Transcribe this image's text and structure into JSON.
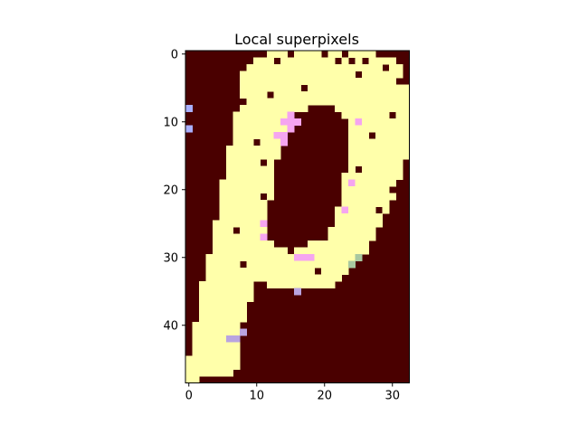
{
  "chart_data": {
    "type": "heatmap",
    "title": "Local superpixels",
    "xlabel": "",
    "ylabel": "",
    "xticks": [
      0,
      10,
      20,
      30
    ],
    "yticks": [
      0,
      10,
      20,
      30,
      40
    ],
    "xlim": [
      -0.5,
      32.5
    ],
    "ylim": [
      48.5,
      -0.5
    ],
    "grid": false,
    "colors": {
      "background": "#4a0000",
      "segment": "#ffffaa",
      "edge_pink": "#f5a5f0",
      "edge_lavender": "#b9a4e0",
      "edge_blue": "#aab0ff",
      "edge_green": "#a8c8a0"
    },
    "segment_rows": [
      {
        "row": 0,
        "runs": [
          [
            12,
            27
          ]
        ]
      },
      {
        "row": 1,
        "runs": [
          [
            10,
            30
          ]
        ]
      },
      {
        "row": 2,
        "runs": [
          [
            9,
            31
          ]
        ]
      },
      {
        "row": 3,
        "runs": [
          [
            8,
            31
          ]
        ]
      },
      {
        "row": 4,
        "runs": [
          [
            8,
            31
          ]
        ]
      },
      {
        "row": 5,
        "runs": [
          [
            8,
            32
          ]
        ]
      },
      {
        "row": 6,
        "runs": [
          [
            8,
            32
          ]
        ]
      },
      {
        "row": 7,
        "runs": [
          [
            8,
            32
          ]
        ]
      },
      {
        "row": 8,
        "runs": [
          [
            8,
            17
          ],
          [
            22,
            32
          ]
        ]
      },
      {
        "row": 9,
        "runs": [
          [
            7,
            15
          ],
          [
            23,
            32
          ]
        ]
      },
      {
        "row": 10,
        "runs": [
          [
            7,
            14
          ],
          [
            24,
            32
          ]
        ]
      },
      {
        "row": 11,
        "runs": [
          [
            7,
            14
          ],
          [
            24,
            32
          ]
        ]
      },
      {
        "row": 12,
        "runs": [
          [
            7,
            13
          ],
          [
            24,
            32
          ]
        ]
      },
      {
        "row": 13,
        "runs": [
          [
            7,
            13
          ],
          [
            24,
            32
          ]
        ]
      },
      {
        "row": 14,
        "runs": [
          [
            6,
            13
          ],
          [
            24,
            32
          ]
        ]
      },
      {
        "row": 15,
        "runs": [
          [
            6,
            13
          ],
          [
            24,
            32
          ]
        ]
      },
      {
        "row": 16,
        "runs": [
          [
            6,
            12
          ],
          [
            24,
            31
          ]
        ]
      },
      {
        "row": 17,
        "runs": [
          [
            6,
            12
          ],
          [
            24,
            31
          ]
        ]
      },
      {
        "row": 18,
        "runs": [
          [
            6,
            12
          ],
          [
            23,
            31
          ]
        ]
      },
      {
        "row": 19,
        "runs": [
          [
            5,
            12
          ],
          [
            23,
            30
          ]
        ]
      },
      {
        "row": 20,
        "runs": [
          [
            5,
            12
          ],
          [
            23,
            30
          ]
        ]
      },
      {
        "row": 21,
        "runs": [
          [
            5,
            12
          ],
          [
            23,
            30
          ]
        ]
      },
      {
        "row": 22,
        "runs": [
          [
            5,
            11
          ],
          [
            23,
            29
          ]
        ]
      },
      {
        "row": 23,
        "runs": [
          [
            5,
            11
          ],
          [
            22,
            29
          ]
        ]
      },
      {
        "row": 24,
        "runs": [
          [
            5,
            11
          ],
          [
            22,
            28
          ]
        ]
      },
      {
        "row": 25,
        "runs": [
          [
            4,
            11
          ],
          [
            22,
            28
          ]
        ]
      },
      {
        "row": 26,
        "runs": [
          [
            4,
            11
          ],
          [
            21,
            27
          ]
        ]
      },
      {
        "row": 27,
        "runs": [
          [
            4,
            11
          ],
          [
            20,
            27
          ]
        ]
      },
      {
        "row": 28,
        "runs": [
          [
            4,
            12
          ],
          [
            18,
            26
          ]
        ]
      },
      {
        "row": 29,
        "runs": [
          [
            4,
            14
          ],
          [
            16,
            26
          ]
        ]
      },
      {
        "row": 30,
        "runs": [
          [
            3,
            25
          ]
        ]
      },
      {
        "row": 31,
        "runs": [
          [
            3,
            24
          ]
        ]
      },
      {
        "row": 32,
        "runs": [
          [
            3,
            23
          ]
        ]
      },
      {
        "row": 33,
        "runs": [
          [
            3,
            22
          ]
        ]
      },
      {
        "row": 34,
        "runs": [
          [
            2,
            9
          ],
          [
            12,
            21
          ]
        ]
      },
      {
        "row": 35,
        "runs": [
          [
            2,
            9
          ]
        ]
      },
      {
        "row": 36,
        "runs": [
          [
            2,
            9
          ]
        ]
      },
      {
        "row": 37,
        "runs": [
          [
            2,
            8
          ]
        ]
      },
      {
        "row": 38,
        "runs": [
          [
            2,
            8
          ]
        ]
      },
      {
        "row": 39,
        "runs": [
          [
            2,
            8
          ]
        ]
      },
      {
        "row": 40,
        "runs": [
          [
            1,
            7
          ]
        ]
      },
      {
        "row": 41,
        "runs": [
          [
            1,
            7
          ]
        ]
      },
      {
        "row": 42,
        "runs": [
          [
            1,
            7
          ]
        ]
      },
      {
        "row": 43,
        "runs": [
          [
            1,
            7
          ]
        ]
      },
      {
        "row": 44,
        "runs": [
          [
            1,
            7
          ]
        ]
      },
      {
        "row": 45,
        "runs": [
          [
            0,
            7
          ]
        ]
      },
      {
        "row": 46,
        "runs": [
          [
            0,
            7
          ]
        ]
      },
      {
        "row": 47,
        "runs": [
          [
            0,
            6
          ]
        ]
      },
      {
        "row": 48,
        "runs": [
          [
            0,
            1
          ]
        ]
      }
    ],
    "holes": [
      [
        0,
        15
      ],
      [
        0,
        20
      ],
      [
        0,
        23
      ],
      [
        1,
        13
      ],
      [
        1,
        22
      ],
      [
        1,
        24
      ],
      [
        1,
        26
      ],
      [
        2,
        29
      ],
      [
        3,
        25
      ],
      [
        4,
        31
      ],
      [
        5,
        17
      ],
      [
        6,
        12
      ],
      [
        7,
        8
      ],
      [
        8,
        19
      ],
      [
        9,
        30
      ],
      [
        12,
        27
      ],
      [
        13,
        10
      ],
      [
        16,
        11
      ],
      [
        17,
        25
      ],
      [
        20,
        30
      ],
      [
        21,
        11
      ],
      [
        23,
        28
      ],
      [
        26,
        7
      ],
      [
        27,
        20
      ],
      [
        31,
        8
      ],
      [
        32,
        19
      ],
      [
        38,
        9
      ]
    ],
    "edge_pixels": [
      {
        "row": 8,
        "col": 0,
        "color": "edge_blue"
      },
      {
        "row": 11,
        "col": 0,
        "color": "edge_blue"
      },
      {
        "row": 9,
        "col": 15,
        "color": "edge_pink"
      },
      {
        "row": 10,
        "col": 14,
        "color": "edge_pink"
      },
      {
        "row": 10,
        "col": 15,
        "color": "edge_pink"
      },
      {
        "row": 10,
        "col": 16,
        "color": "edge_pink"
      },
      {
        "row": 11,
        "col": 15,
        "color": "edge_pink"
      },
      {
        "row": 12,
        "col": 13,
        "color": "edge_pink"
      },
      {
        "row": 12,
        "col": 14,
        "color": "edge_pink"
      },
      {
        "row": 13,
        "col": 14,
        "color": "edge_pink"
      },
      {
        "row": 10,
        "col": 25,
        "color": "edge_pink"
      },
      {
        "row": 19,
        "col": 24,
        "color": "edge_pink"
      },
      {
        "row": 23,
        "col": 23,
        "color": "edge_pink"
      },
      {
        "row": 25,
        "col": 11,
        "color": "edge_pink"
      },
      {
        "row": 27,
        "col": 11,
        "color": "edge_pink"
      },
      {
        "row": 30,
        "col": 16,
        "color": "edge_pink"
      },
      {
        "row": 30,
        "col": 17,
        "color": "edge_pink"
      },
      {
        "row": 30,
        "col": 18,
        "color": "edge_pink"
      },
      {
        "row": 35,
        "col": 16,
        "color": "edge_lavender"
      },
      {
        "row": 41,
        "col": 8,
        "color": "edge_lavender"
      },
      {
        "row": 42,
        "col": 6,
        "color": "edge_lavender"
      },
      {
        "row": 42,
        "col": 7,
        "color": "edge_lavender"
      },
      {
        "row": 30,
        "col": 25,
        "color": "edge_green"
      },
      {
        "row": 31,
        "col": 24,
        "color": "edge_green"
      }
    ]
  }
}
